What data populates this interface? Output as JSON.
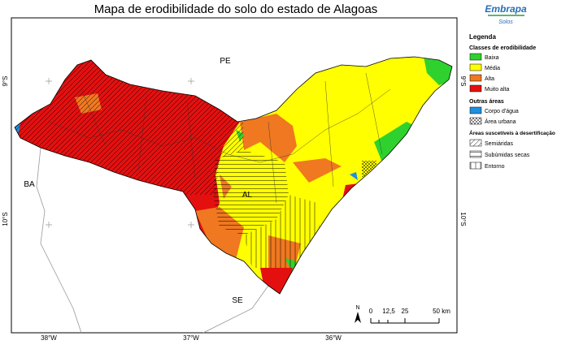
{
  "title": "Mapa de erodibilidade do solo do estado de Alagoas",
  "logo": {
    "name": "Embrapa",
    "unit": "Solos"
  },
  "map": {
    "states": {
      "pe": "PE",
      "ba": "BA",
      "al": "AL",
      "se": "SE"
    },
    "latitudes": [
      "9°S",
      "10°S"
    ],
    "longitudes": [
      "38°W",
      "37°W",
      "36°W"
    ]
  },
  "scale_bar": {
    "north": "N",
    "labels": [
      "0",
      "12,5",
      "25",
      "50 km"
    ]
  },
  "legend": {
    "title": "Legenda",
    "groups": [
      {
        "title": "Classes de erodibilidade",
        "items": [
          {
            "label": "Baixa",
            "color": "#2fd12f"
          },
          {
            "label": "Média",
            "color": "#ffff00"
          },
          {
            "label": "Alta",
            "color": "#f07820"
          },
          {
            "label": "Muito alta",
            "color": "#e41010"
          }
        ]
      },
      {
        "title": "Outras áreas",
        "items": [
          {
            "label": "Corpo d'água",
            "color": "#1e90e0"
          },
          {
            "label": "Área urbana"
          }
        ]
      },
      {
        "title": "Áreas suscetíveis à desertificação",
        "items": [
          {
            "label": "Semiáridas"
          },
          {
            "label": "Subúmidas secas"
          },
          {
            "label": "Entorno"
          }
        ]
      }
    ]
  }
}
